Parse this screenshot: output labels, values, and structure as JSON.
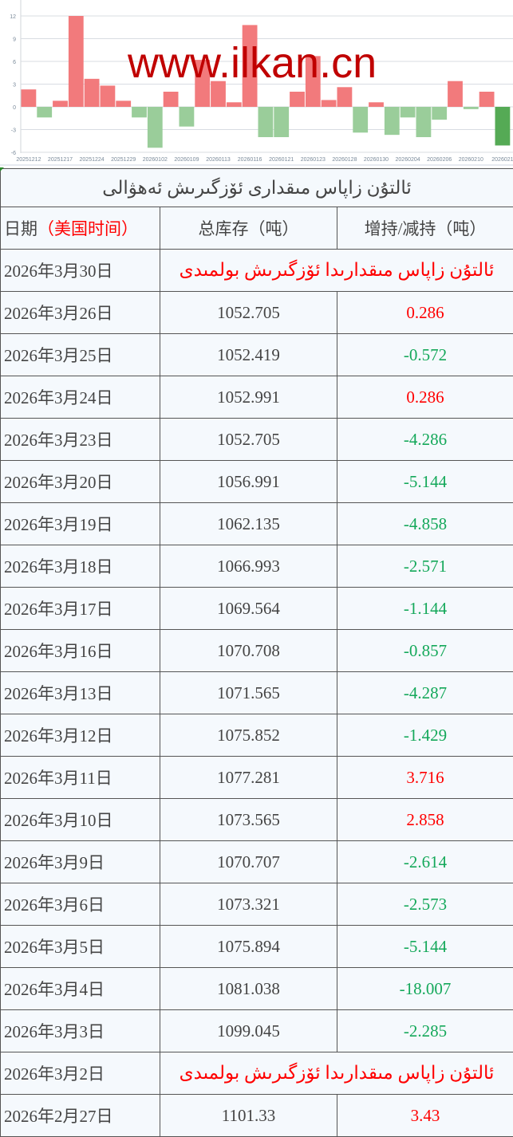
{
  "chart_data": {
    "type": "bar",
    "title": "",
    "xlabel": "",
    "ylabel": "",
    "ylim": [
      -6,
      12
    ],
    "yticks": [
      -6,
      -3,
      0,
      3,
      6,
      9,
      12
    ],
    "grid": true,
    "tick_labels": [
      "20251212",
      "20251217",
      "20251224",
      "20251229",
      "20260102",
      "20260109",
      "20260113",
      "20260116",
      "20260121",
      "20260123",
      "20260128",
      "20260130",
      "20260204",
      "20260206",
      "20260210",
      "2026021"
    ],
    "values": [
      2.3,
      -1.4,
      0.8,
      12,
      3.7,
      2.8,
      0.8,
      -1.4,
      -5.4,
      2.0,
      -2.6,
      6.2,
      3.4,
      0.6,
      10.8,
      -4.0,
      -4.0,
      2.0,
      6.7,
      0.9,
      2.6,
      -3.4,
      0.6,
      -3.7,
      -1.4,
      -4.0,
      -1.7,
      3.4,
      -0.3,
      2.0,
      -5.1
    ],
    "highlighted_index": 30,
    "colors": {
      "positive": "#f27a7c",
      "negative": "#9acd9a",
      "highlight": "#55aa55",
      "grid": "#d8dce2",
      "axis_text": "#7a8a9a"
    }
  },
  "watermark": "www.ilkan.cn",
  "table": {
    "title": "ئالتۇن زاپاس مىقدارى ئۆزگىرىش ئەھۋالى",
    "headers": {
      "date": "日期",
      "date_note": "（美国时间）",
      "total": "总库存（吨）",
      "change": "增持/减持（吨）"
    },
    "no_change_text": "ئالتۇن زاپاس مىقدارىدا ئۆزگىرىش بولمىدى",
    "rows": [
      {
        "date": "2026年3月30日",
        "total": "",
        "change": "",
        "no_change": true
      },
      {
        "date": "2026年3月26日",
        "total": "1052.705",
        "change": "0.286",
        "dir": "up"
      },
      {
        "date": "2026年3月25日",
        "total": "1052.419",
        "change": "-0.572",
        "dir": "down"
      },
      {
        "date": "2026年3月24日",
        "total": "1052.991",
        "change": "0.286",
        "dir": "up"
      },
      {
        "date": "2026年3月23日",
        "total": "1052.705",
        "change": "-4.286",
        "dir": "down"
      },
      {
        "date": "2026年3月20日",
        "total": "1056.991",
        "change": "-5.144",
        "dir": "down"
      },
      {
        "date": "2026年3月19日",
        "total": "1062.135",
        "change": "-4.858",
        "dir": "down"
      },
      {
        "date": "2026年3月18日",
        "total": "1066.993",
        "change": "-2.571",
        "dir": "down"
      },
      {
        "date": "2026年3月17日",
        "total": "1069.564",
        "change": "-1.144",
        "dir": "down"
      },
      {
        "date": "2026年3月16日",
        "total": "1070.708",
        "change": "-0.857",
        "dir": "down"
      },
      {
        "date": "2026年3月13日",
        "total": "1071.565",
        "change": "-4.287",
        "dir": "down"
      },
      {
        "date": "2026年3月12日",
        "total": "1075.852",
        "change": "-1.429",
        "dir": "down"
      },
      {
        "date": "2026年3月11日",
        "total": "1077.281",
        "change": "3.716",
        "dir": "up"
      },
      {
        "date": "2026年3月10日",
        "total": "1073.565",
        "change": "2.858",
        "dir": "up"
      },
      {
        "date": "2026年3月9日",
        "total": "1070.707",
        "change": "-2.614",
        "dir": "down"
      },
      {
        "date": "2026年3月6日",
        "total": "1073.321",
        "change": "-2.573",
        "dir": "down"
      },
      {
        "date": "2026年3月5日",
        "total": "1075.894",
        "change": "-5.144",
        "dir": "down"
      },
      {
        "date": "2026年3月4日",
        "total": "1081.038",
        "change": "-18.007",
        "dir": "down"
      },
      {
        "date": "2026年3月3日",
        "total": "1099.045",
        "change": "-2.285",
        "dir": "down"
      },
      {
        "date": "2026年3月2日",
        "total": "",
        "change": "",
        "no_change": true
      },
      {
        "date": "2026年2月27日",
        "total": "1101.33",
        "change": "3.43",
        "dir": "up"
      }
    ]
  }
}
